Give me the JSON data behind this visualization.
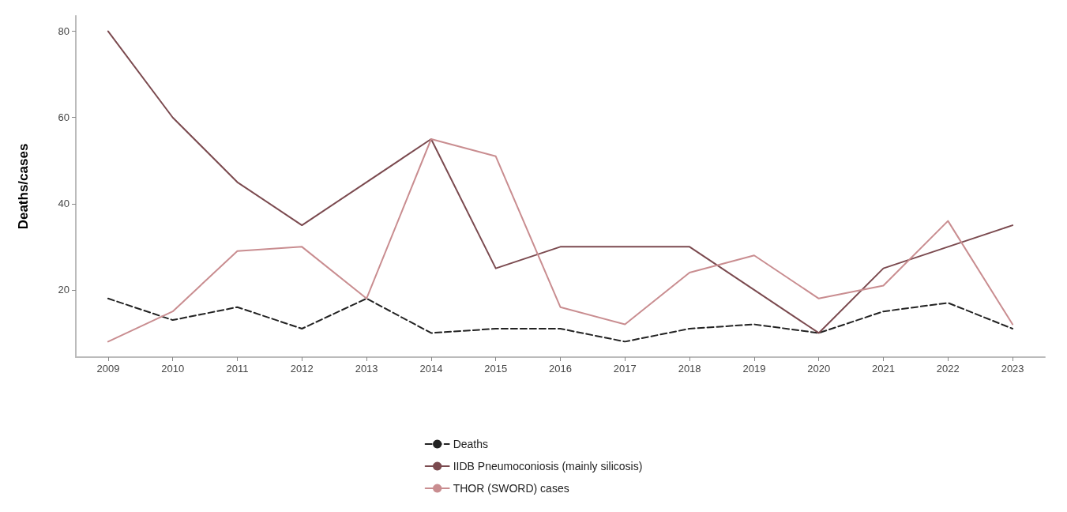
{
  "chart_data": {
    "type": "line",
    "ylabel": "Deaths/cases",
    "categories": [
      "2009",
      "2010",
      "2011",
      "2012",
      "2013",
      "2014",
      "2015",
      "2016",
      "2017",
      "2018",
      "2019",
      "2020",
      "2021",
      "2022",
      "2023"
    ],
    "series": [
      {
        "name": "Deaths",
        "color": "#222222",
        "line_style": "dashed",
        "values": [
          18,
          13,
          16,
          11,
          18,
          10,
          11,
          11,
          8,
          11,
          12,
          10,
          15,
          17,
          11
        ]
      },
      {
        "name": "IIDB Pneumoconiosis (mainly silicosis)",
        "color": "#7b4a4f",
        "line_style": "solid",
        "values": [
          80,
          60,
          45,
          35,
          45,
          55,
          25,
          30,
          30,
          30,
          20,
          10,
          25,
          30,
          35
        ]
      },
      {
        "name": "THOR (SWORD) cases",
        "color": "#c98d90",
        "line_style": "solid",
        "values": [
          8,
          15,
          29,
          30,
          18,
          55,
          51,
          16,
          12,
          24,
          28,
          18,
          21,
          36,
          12
        ]
      }
    ],
    "ylim": [
      4.4,
      83.6
    ],
    "yticks": [
      20,
      40,
      60,
      80
    ],
    "grid": false,
    "legend": "bottom",
    "marker": "none"
  }
}
